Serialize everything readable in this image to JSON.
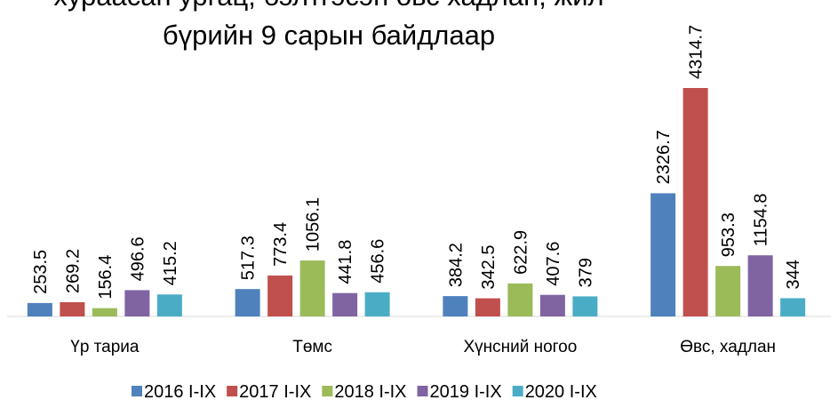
{
  "chart_data": {
    "type": "bar",
    "title": [
      "хураасан ургац, бэлтгэсэн өвс хадлан, жил",
      "бүрийн 9 сарын байдлаар"
    ],
    "categories": [
      "Үр тариа",
      "Төмс",
      "Хүнсний ногоо",
      "Өвс, хадлан"
    ],
    "series": [
      {
        "name": "2016 I-IX",
        "color": "#4f81bd",
        "values": [
          253.5,
          517.3,
          384.2,
          2326.7
        ]
      },
      {
        "name": "2017 I-IX",
        "color": "#c0504d",
        "values": [
          269.2,
          773.4,
          342.5,
          4314.7
        ]
      },
      {
        "name": "2018 I-IX",
        "color": "#9bbb59",
        "values": [
          156.4,
          1056.1,
          622.9,
          953.3
        ]
      },
      {
        "name": "2019 I-IX",
        "color": "#8064a2",
        "values": [
          496.6,
          441.8,
          407.6,
          1154.8
        ]
      },
      {
        "name": "2020 I-IX",
        "color": "#4bacc6",
        "values": [
          415.2,
          456.6,
          379,
          344
        ]
      }
    ],
    "legend": "bottom"
  }
}
